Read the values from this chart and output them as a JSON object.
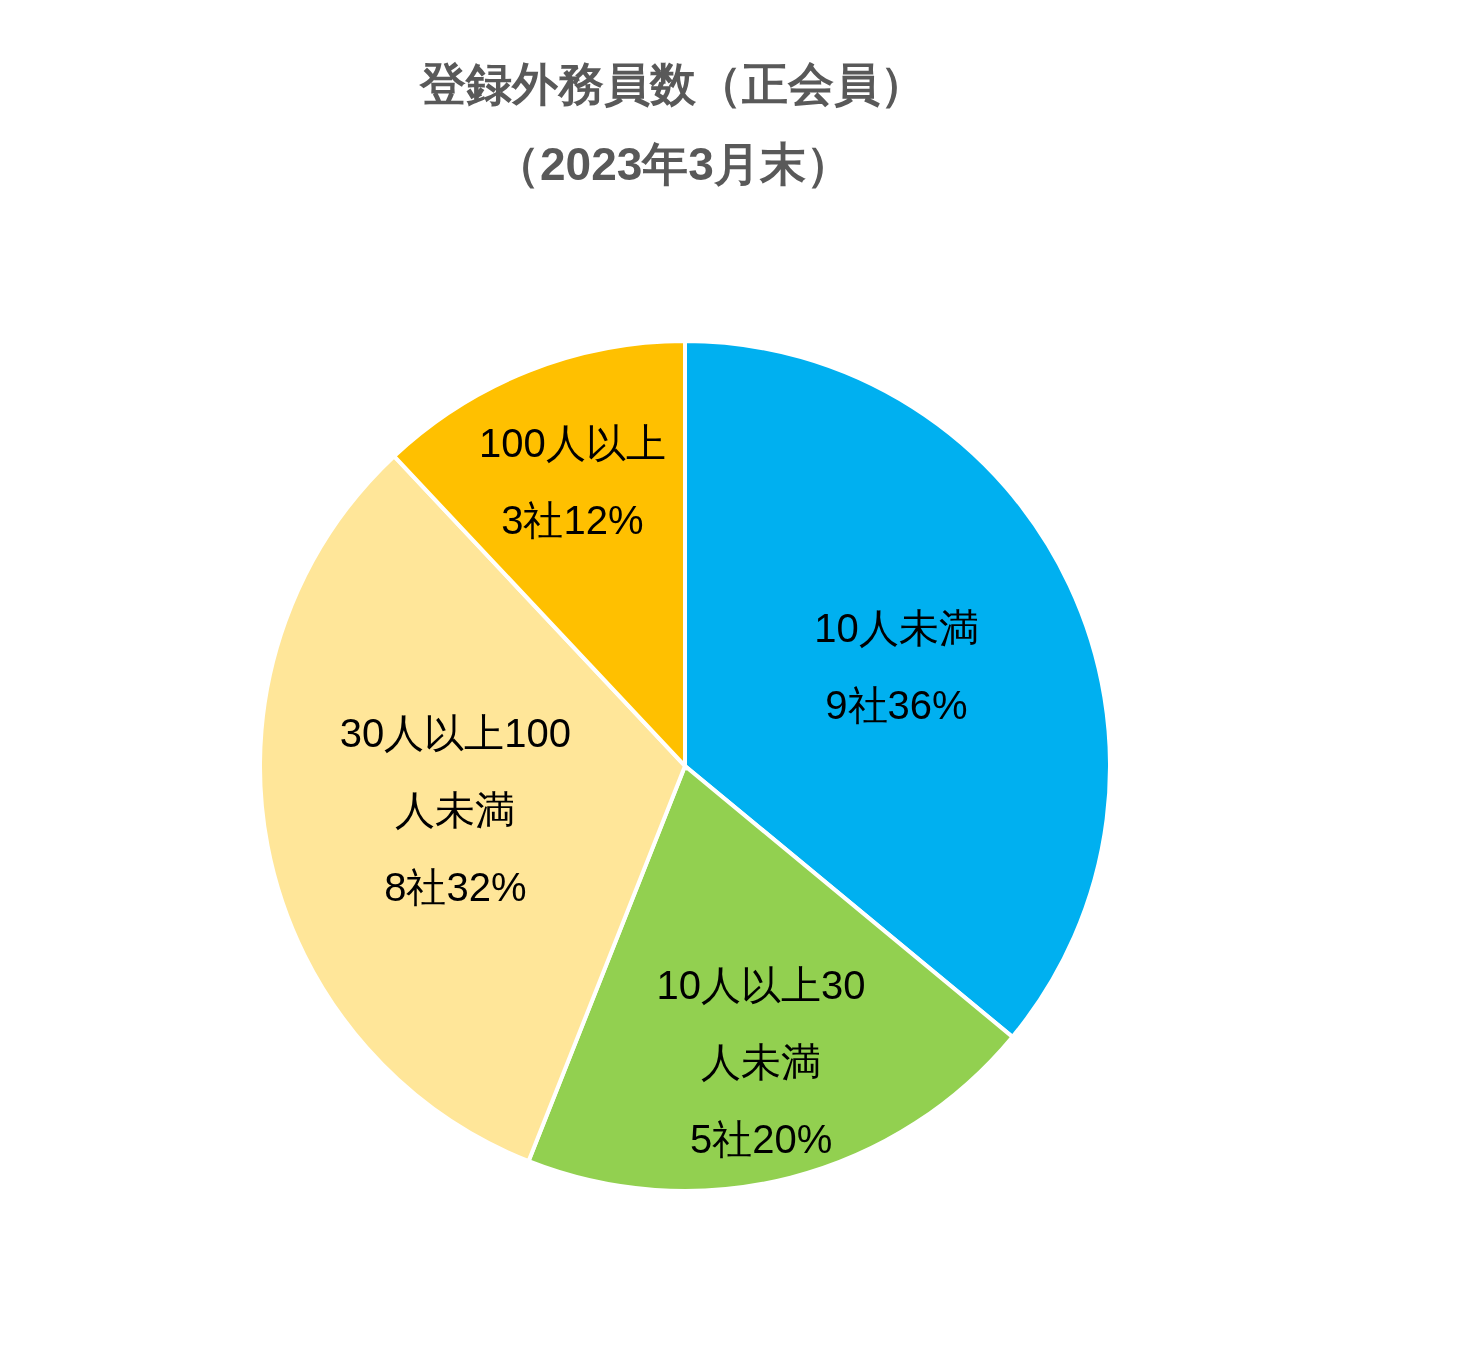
{
  "chart_data": {
    "type": "pie",
    "title": "登録外務員数（正会員）",
    "subtitle": "（2023年3月末）",
    "categories": [
      "10人未満",
      "10人以上30人未満",
      "30人以上100人未満",
      "100人以上"
    ],
    "values": [
      9,
      5,
      8,
      3
    ],
    "value_labels": [
      "9社36%",
      "5社20%",
      "8社32%",
      "3社12%"
    ],
    "colors": [
      "#00b0f0",
      "#92d050",
      "#ffe699",
      "#ffc000"
    ],
    "legend": false
  }
}
